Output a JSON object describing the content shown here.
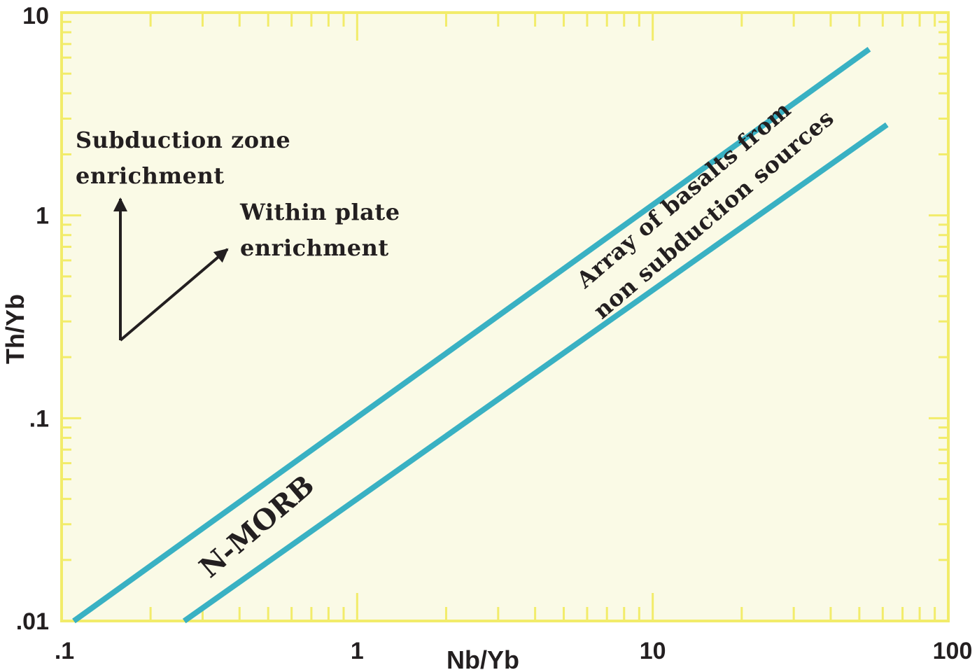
{
  "chart_data": {
    "type": "line",
    "xlabel": "Nb/Yb",
    "ylabel": "Th/Yb",
    "x_scale": "log",
    "y_scale": "log",
    "xlim": [
      0.1,
      100
    ],
    "ylim": [
      0.01,
      10
    ],
    "x_ticks": [
      ".1",
      "1",
      "10",
      "100"
    ],
    "y_ticks": [
      ".01",
      ".1",
      "1",
      "10"
    ],
    "series": [
      {
        "x": [
          0.11,
          54
        ],
        "y": [
          0.01,
          6.6
        ]
      },
      {
        "x": [
          0.26,
          62
        ],
        "y": [
          0.01,
          2.8
        ]
      }
    ],
    "annotations": {
      "subduction": [
        "Subduction zone",
        "enrichment"
      ],
      "within_plate": [
        "Within plate",
        "enrichment"
      ],
      "array": [
        "Array of basalts from",
        "non subduction sources"
      ],
      "nmorb": "N-MORB"
    },
    "colors": {
      "plot_background": "#fafae6",
      "frame": "#f2ec6a",
      "series_line": "#39b1c3",
      "text": "#231f20"
    }
  }
}
